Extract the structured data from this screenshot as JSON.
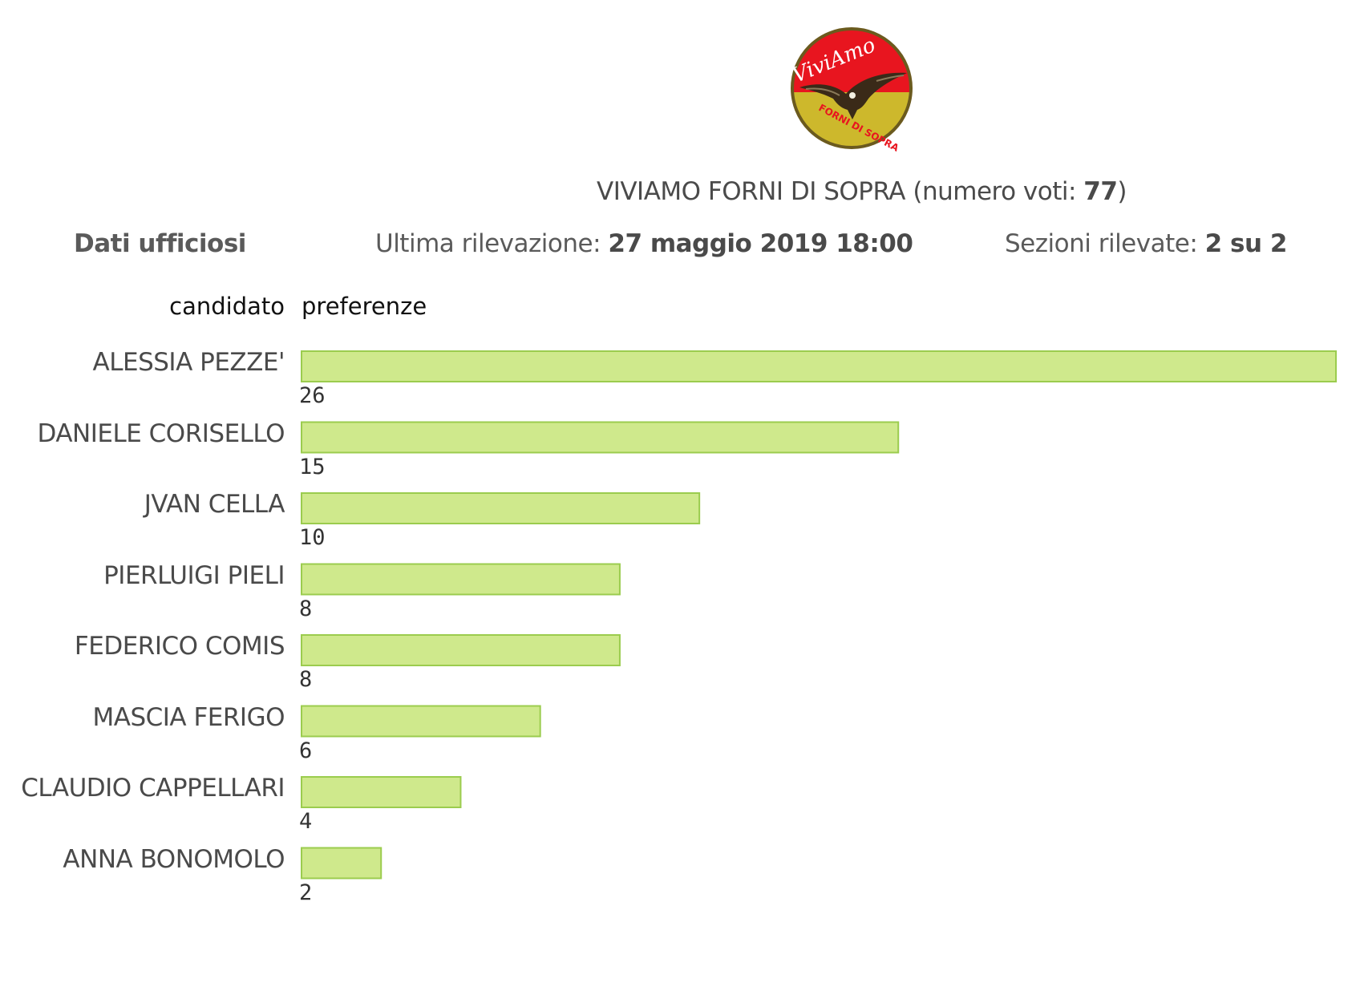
{
  "logo": {
    "text_top": "ViviAmo",
    "text_bottom": "FORNI DI SOPRA",
    "colors": {
      "top": "#e8151f",
      "bottom": "#cdb82c",
      "border": "#6b5a1e"
    }
  },
  "header": {
    "party_name": "VIVIAMO FORNI DI SOPRA",
    "votes_prefix": "(numero voti: ",
    "votes_value": "77",
    "votes_suffix": ")"
  },
  "info": {
    "status": "Dati ufficiosi",
    "last_update_label": "Ultima rilevazione:",
    "last_update_value": "27 maggio 2019 18:00",
    "sections_label": "Sezioni rilevate:",
    "sections_value": "2 su 2"
  },
  "columns": {
    "candidate": "candidato",
    "preferences": "preferenze"
  },
  "chart_data": {
    "type": "bar",
    "orientation": "horizontal",
    "categories": [
      "ALESSIA PEZZE'",
      "DANIELE CORISELLO",
      "JVAN CELLA",
      "PIERLUIGI PIELI",
      "FEDERICO COMIS",
      "MASCIA FERIGO",
      "CLAUDIO CAPPELLARI",
      "ANNA BONOMOLO"
    ],
    "values": [
      26,
      15,
      10,
      8,
      8,
      6,
      4,
      2
    ],
    "value_labels": [
      "26",
      "15",
      "10",
      "8",
      "8",
      "6",
      "4",
      "2"
    ],
    "bar_color": "#cfe98c",
    "bar_border_color": "#9bcc4e"
  }
}
